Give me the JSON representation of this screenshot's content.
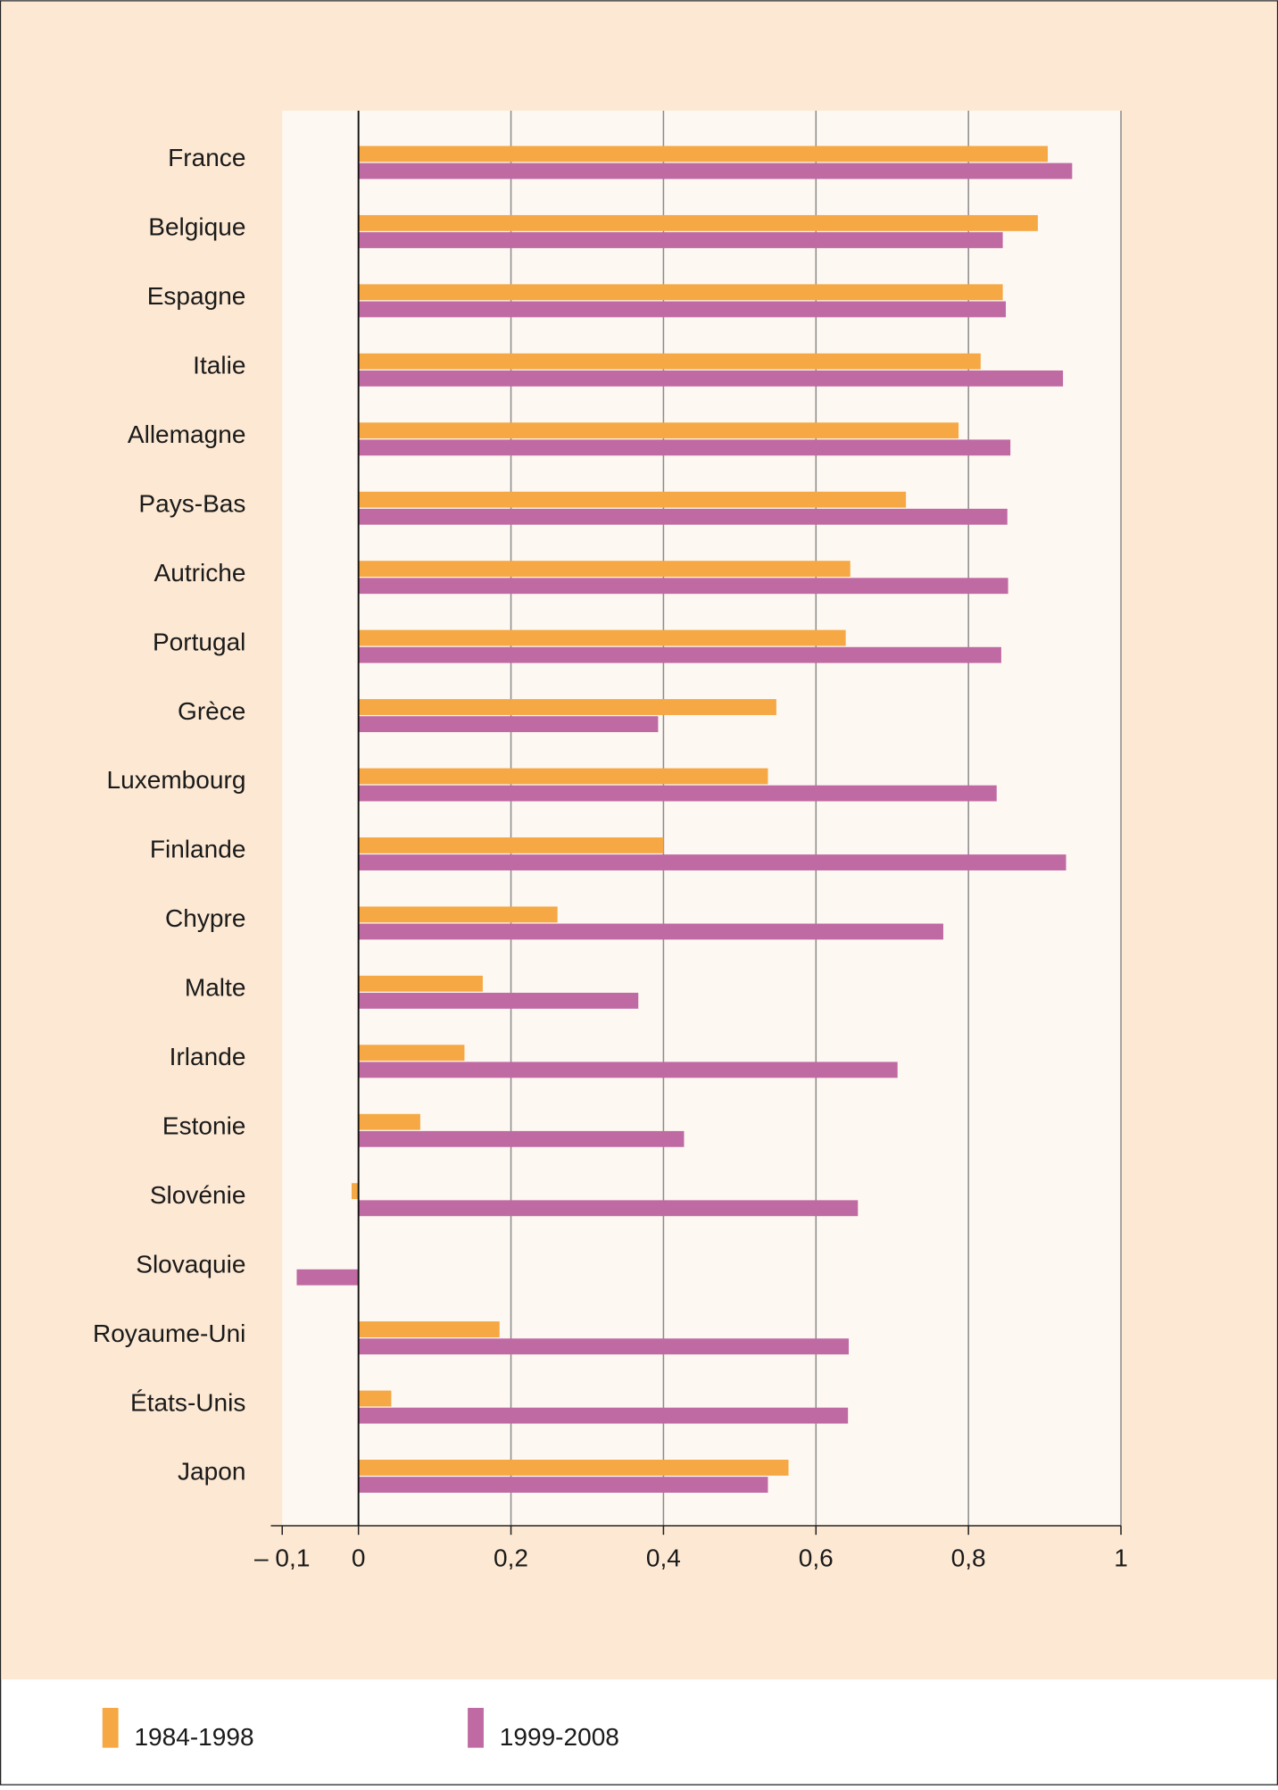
{
  "chart_data": {
    "type": "barh",
    "categories": [
      "France",
      "Belgique",
      "Espagne",
      "Italie",
      "Allemagne",
      "Pays-Bas",
      "Autriche",
      "Portugal",
      "Grèce",
      "Luxembourg",
      "Finlande",
      "Chypre",
      "Malte",
      "Irlande",
      "Estonie",
      "Slovénie",
      "Slovaquie",
      "Royaume-Uni",
      "États-Unis",
      "Japon"
    ],
    "series": [
      {
        "name": "1984-1998",
        "color": "#f5a843",
        "values": [
          0.904,
          0.891,
          0.845,
          0.816,
          0.787,
          0.718,
          0.645,
          0.639,
          0.548,
          0.537,
          0.4,
          0.261,
          0.163,
          0.139,
          0.081,
          -0.009,
          null,
          0.185,
          0.043,
          0.564
        ]
      },
      {
        "name": "1999-2008",
        "color": "#c06aa3",
        "values": [
          0.936,
          0.845,
          0.849,
          0.924,
          0.855,
          0.851,
          0.852,
          0.843,
          0.393,
          0.837,
          0.928,
          0.767,
          0.367,
          0.707,
          0.427,
          0.655,
          -0.081,
          0.643,
          0.642,
          0.537
        ]
      }
    ],
    "xlim": [
      -0.1,
      1
    ],
    "xticks": [
      {
        "value": -0.1,
        "label": "– 0,1"
      },
      0,
      {
        "value": 0.2,
        "label": "0,2"
      },
      {
        "value": 0.4,
        "label": "0,4"
      },
      {
        "value": 0.6,
        "label": "0,6"
      },
      {
        "value": 0.8,
        "label": "0,8"
      },
      1
    ],
    "grid": true
  }
}
